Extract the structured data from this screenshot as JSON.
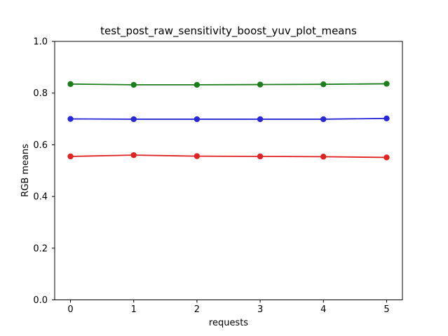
{
  "figure": {
    "background": "#ffffff",
    "spine_color": "#000000"
  },
  "chart_data": {
    "type": "line",
    "title": "test_post_raw_sensitivity_boost_yuv_plot_means",
    "xlabel": "requests",
    "ylabel": "RGB means",
    "x": [
      0,
      1,
      2,
      3,
      4,
      5
    ],
    "xtick_labels": [
      "0",
      "1",
      "2",
      "3",
      "4",
      "5"
    ],
    "ytick_values": [
      0.0,
      0.2,
      0.4,
      0.6,
      0.8,
      1.0
    ],
    "ytick_labels": [
      "0.0",
      "0.2",
      "0.4",
      "0.6",
      "0.8",
      "1.0"
    ],
    "xlim": [
      -0.25,
      5.25
    ],
    "ylim": [
      0.0,
      1.0
    ],
    "grid": false,
    "legend": "none",
    "marker": "circle",
    "series": [
      {
        "name": "green-line",
        "color": "#1b7e1b",
        "values": [
          0.835,
          0.832,
          0.832,
          0.833,
          0.834,
          0.836
        ]
      },
      {
        "name": "blue-line",
        "color": "#2828d8",
        "values": [
          0.7,
          0.699,
          0.699,
          0.699,
          0.699,
          0.702
        ]
      },
      {
        "name": "red-line",
        "color": "#e02222",
        "values": [
          0.555,
          0.56,
          0.556,
          0.555,
          0.554,
          0.551
        ]
      }
    ]
  }
}
